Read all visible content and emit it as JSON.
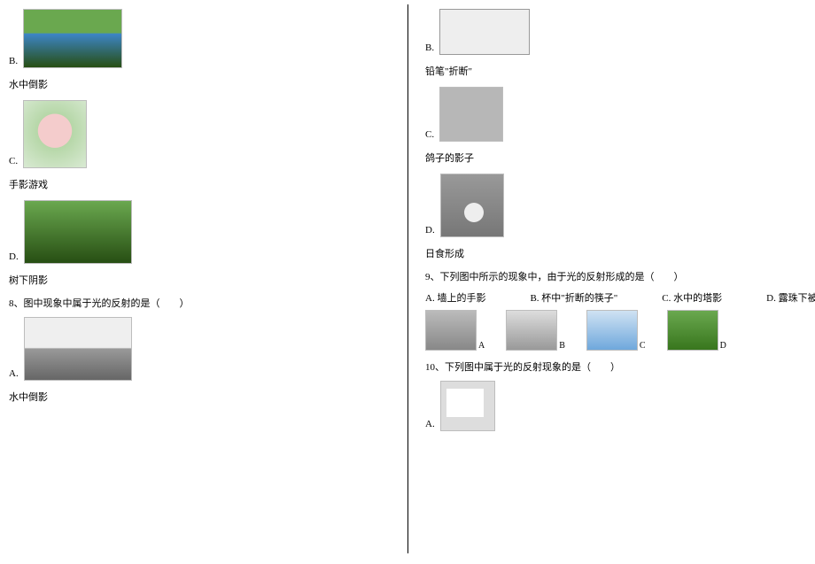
{
  "left": {
    "optB": {
      "letter": "B.",
      "caption": "水中倒影"
    },
    "optC": {
      "letter": "C.",
      "caption": "手影游戏"
    },
    "optD": {
      "letter": "D.",
      "caption": "树下阴影"
    },
    "q8": {
      "line": "8、图中现象中属于光的反射的是（　　）"
    },
    "q8A": {
      "letter": "A.",
      "caption": "水中倒影"
    }
  },
  "right": {
    "optB": {
      "letter": "B.",
      "caption": "铅笔\"折断\""
    },
    "optC": {
      "letter": "C.",
      "caption": "鸽子的影子"
    },
    "optD": {
      "letter": "D.",
      "caption": "日食形成"
    },
    "q9": {
      "line": "9、下列图中所示的现象中，由于光的反射形成的是（　　）",
      "optA": "A. 墙上的手影",
      "optB": "B. 杯中\"折断的筷子\"",
      "optC": "C. 水中的塔影",
      "optD": "D. 露珠下被放大的草叶",
      "tagA": "A",
      "tagB": "B",
      "tagC": "C",
      "tagD": "D"
    },
    "q10": {
      "line": "10、下列图中属于光的反射现象的是（　　）",
      "optA": "A."
    }
  }
}
